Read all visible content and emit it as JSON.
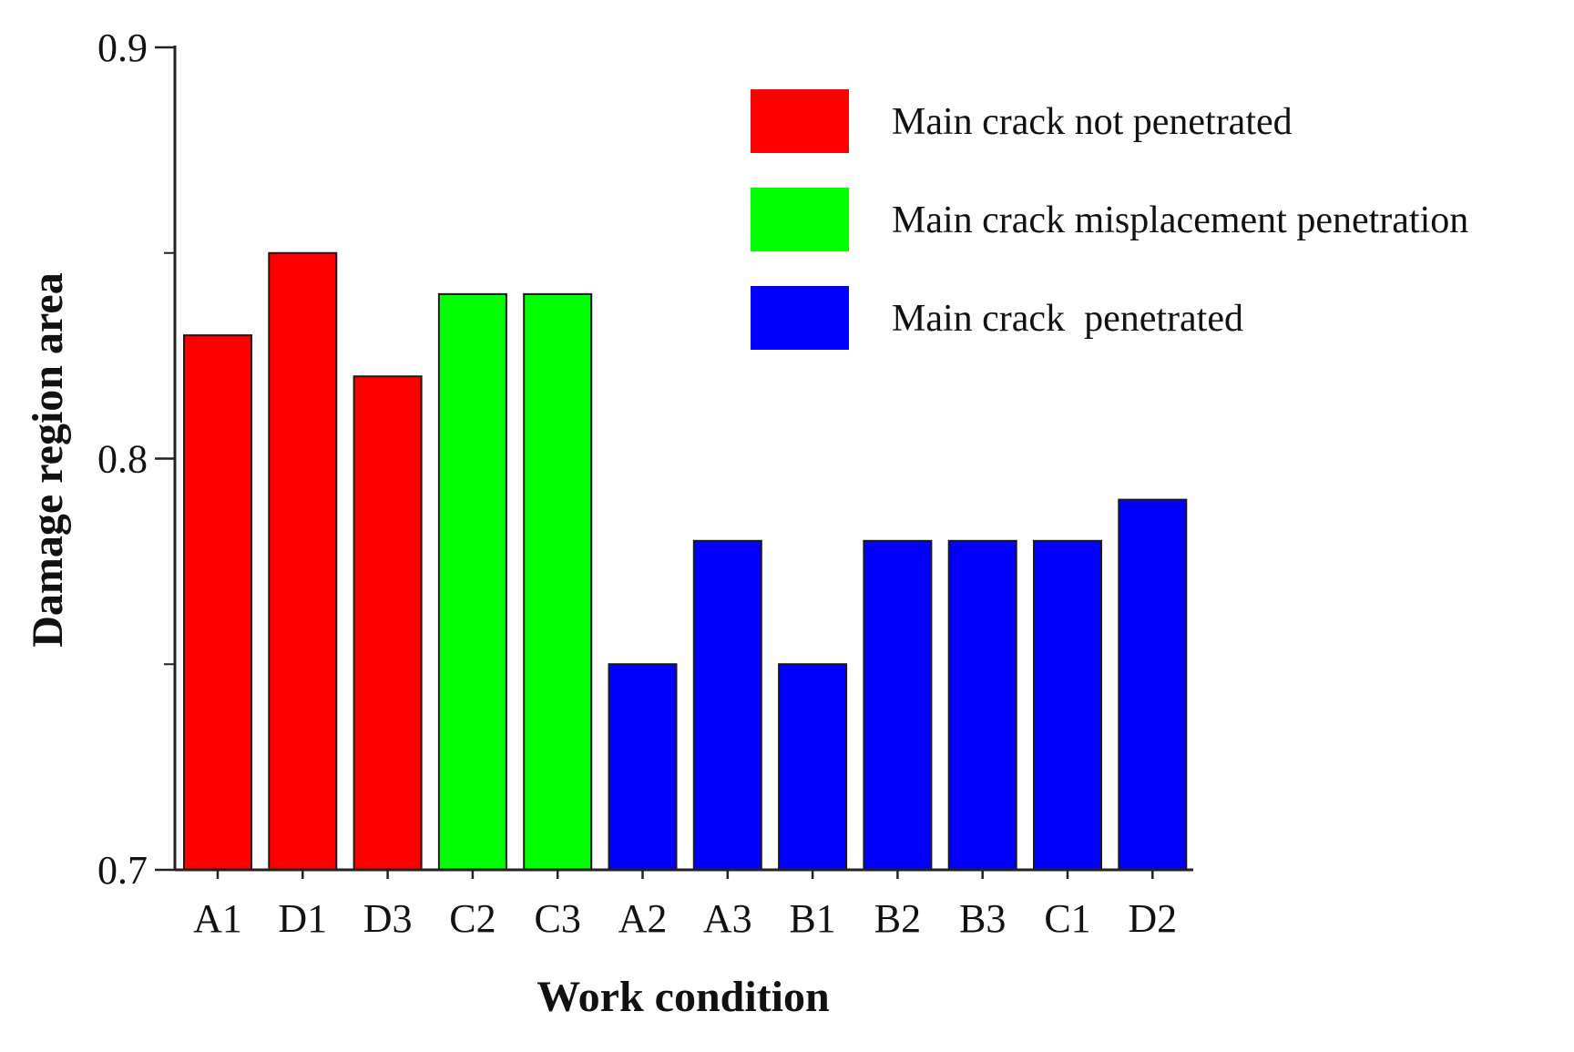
{
  "chart_data": {
    "type": "bar",
    "title": "",
    "xlabel": "Work condition",
    "ylabel": "Damage region area",
    "ylim": [
      0.7,
      0.9
    ],
    "yticks": [
      0.7,
      0.8,
      0.9
    ],
    "ytick_labels": [
      "0.7",
      "0.8",
      "0.9"
    ],
    "categories": [
      "A1",
      "D1",
      "D3",
      "C2",
      "C3",
      "A2",
      "A3",
      "B1",
      "B2",
      "B3",
      "C1",
      "D2"
    ],
    "values": [
      0.83,
      0.85,
      0.82,
      0.84,
      0.84,
      0.75,
      0.78,
      0.75,
      0.78,
      0.78,
      0.78,
      0.79
    ],
    "groups": [
      0,
      0,
      0,
      1,
      1,
      2,
      2,
      2,
      2,
      2,
      2,
      2
    ],
    "legend": [
      {
        "label": "Main crack not penetrated",
        "color": "#ff0000"
      },
      {
        "label": "Main crack misplacement penetration",
        "color": "#00ff00"
      },
      {
        "label": "Main crack  penetrated",
        "color": "#0000ff"
      }
    ],
    "legend_position": "top-right",
    "grid": false
  }
}
